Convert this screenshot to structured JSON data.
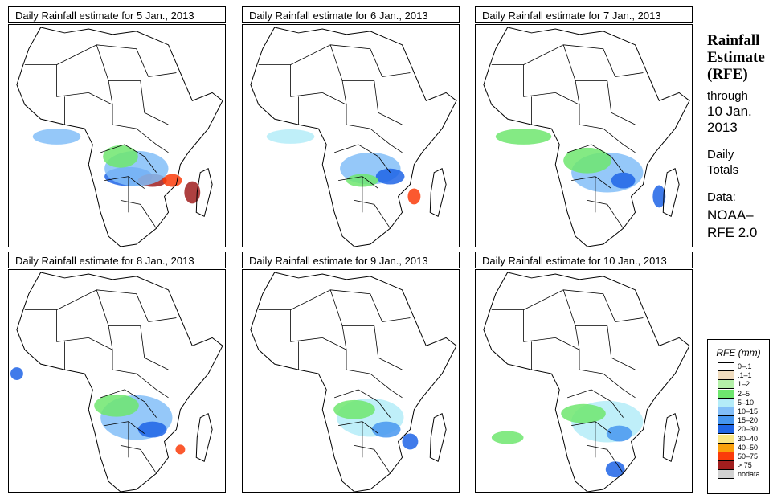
{
  "panels": [
    {
      "title": "Daily Rainfall estimate for  5 Jan., 2013",
      "date": "5 Jan., 2013"
    },
    {
      "title": "Daily Rainfall estimate for  6 Jan., 2013",
      "date": "6 Jan., 2013"
    },
    {
      "title": "Daily Rainfall estimate for  7 Jan., 2013",
      "date": "7 Jan., 2013"
    },
    {
      "title": "Daily Rainfall estimate for  8 Jan., 2013",
      "date": "8 Jan., 2013"
    },
    {
      "title": "Daily Rainfall estimate for  9 Jan., 2013",
      "date": "9 Jan., 2013"
    },
    {
      "title": "Daily Rainfall estimate for  10 Jan., 2013",
      "date": "10 Jan., 2013"
    }
  ],
  "side": {
    "title_line1": "Rainfall",
    "title_line2": "Estimate",
    "title_line3": "(RFE)",
    "through": "through",
    "through_date1": "10 Jan.",
    "through_date2": "2013",
    "daily1": "Daily",
    "daily2": "Totals",
    "data_label": "Data:",
    "data_src1": "NOAA–",
    "data_src2": "RFE 2.0"
  },
  "legend": {
    "title": "RFE (mm)",
    "items": [
      {
        "label": "0–.1",
        "color": "#ffffff"
      },
      {
        "label": ".1–1",
        "color": "#f0dcbe"
      },
      {
        "label": "1–2",
        "color": "#b4f0a8"
      },
      {
        "label": "2–5",
        "color": "#6ee66e"
      },
      {
        "label": "5–10",
        "color": "#b4ecf8"
      },
      {
        "label": "10–15",
        "color": "#82bef8"
      },
      {
        "label": "15–20",
        "color": "#4696f0"
      },
      {
        "label": "20–30",
        "color": "#1e64e6"
      },
      {
        "label": "30–40",
        "color": "#fae682"
      },
      {
        "label": "40–50",
        "color": "#faa00a"
      },
      {
        "label": "50–75",
        "color": "#fa3c0a"
      },
      {
        "label": "> 75",
        "color": "#a01e1e"
      },
      {
        "label": "nodata",
        "color": "#d2d2d2"
      }
    ]
  }
}
